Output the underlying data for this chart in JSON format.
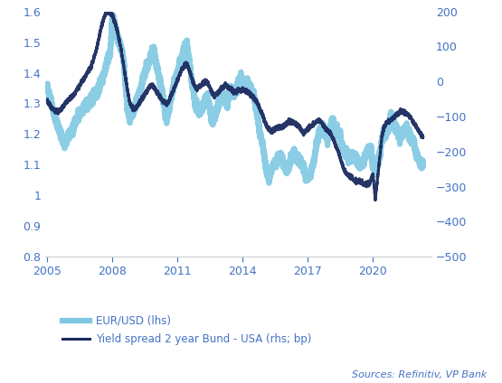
{
  "title": "",
  "ylim_left": [
    0.8,
    1.6
  ],
  "ylim_right": [
    -500,
    200
  ],
  "yticks_left": [
    0.8,
    0.9,
    1.0,
    1.1,
    1.2,
    1.3,
    1.4,
    1.5,
    1.6
  ],
  "yticks_right": [
    -500,
    -400,
    -300,
    -200,
    -100,
    0,
    100,
    200
  ],
  "xlim": [
    2004.9,
    2022.7
  ],
  "xticks": [
    2005,
    2008,
    2011,
    2014,
    2017,
    2020
  ],
  "legend_labels": [
    "EUR/USD (lhs)",
    "Yield spread 2 year Bund - USA (rhs; bp)"
  ],
  "eurusd_color": "#7ec8e3",
  "yield_color": "#1a2a5e",
  "tick_label_color": "#4472C4",
  "sources_text": "Sources: Refinitiv, VP Bank",
  "sources_color": "#4472C4",
  "background_color": "#ffffff",
  "eurusd_lw": 4.5,
  "yield_lw": 2.2,
  "eurusd_data": {
    "years": [
      2005.0,
      2005.1,
      2005.2,
      2005.3,
      2005.4,
      2005.5,
      2005.6,
      2005.7,
      2005.8,
      2005.9,
      2006.0,
      2006.1,
      2006.2,
      2006.3,
      2006.4,
      2006.5,
      2006.6,
      2006.7,
      2006.8,
      2006.9,
      2007.0,
      2007.1,
      2007.2,
      2007.3,
      2007.4,
      2007.5,
      2007.6,
      2007.7,
      2007.8,
      2007.9,
      2008.0,
      2008.1,
      2008.2,
      2008.3,
      2008.4,
      2008.5,
      2008.6,
      2008.7,
      2008.8,
      2008.9,
      2009.0,
      2009.1,
      2009.2,
      2009.3,
      2009.4,
      2009.5,
      2009.6,
      2009.7,
      2009.8,
      2009.9,
      2010.0,
      2010.1,
      2010.2,
      2010.3,
      2010.4,
      2010.5,
      2010.6,
      2010.7,
      2010.8,
      2010.9,
      2011.0,
      2011.1,
      2011.2,
      2011.3,
      2011.4,
      2011.5,
      2011.6,
      2011.7,
      2011.8,
      2011.9,
      2012.0,
      2012.1,
      2012.2,
      2012.3,
      2012.4,
      2012.5,
      2012.6,
      2012.7,
      2012.8,
      2012.9,
      2013.0,
      2013.1,
      2013.2,
      2013.3,
      2013.4,
      2013.5,
      2013.6,
      2013.7,
      2013.8,
      2013.9,
      2014.0,
      2014.1,
      2014.2,
      2014.3,
      2014.4,
      2014.5,
      2014.6,
      2014.7,
      2014.8,
      2014.9,
      2015.0,
      2015.1,
      2015.2,
      2015.3,
      2015.4,
      2015.5,
      2015.6,
      2015.7,
      2015.8,
      2015.9,
      2016.0,
      2016.1,
      2016.2,
      2016.3,
      2016.4,
      2016.5,
      2016.6,
      2016.7,
      2016.8,
      2016.9,
      2017.0,
      2017.1,
      2017.2,
      2017.3,
      2017.4,
      2017.5,
      2017.6,
      2017.7,
      2017.8,
      2017.9,
      2018.0,
      2018.1,
      2018.2,
      2018.3,
      2018.4,
      2018.5,
      2018.6,
      2018.7,
      2018.8,
      2018.9,
      2019.0,
      2019.1,
      2019.2,
      2019.3,
      2019.4,
      2019.5,
      2019.6,
      2019.7,
      2019.8,
      2019.9,
      2020.0,
      2020.1,
      2020.2,
      2020.3,
      2020.4,
      2020.5,
      2020.6,
      2020.7,
      2020.8,
      2020.9,
      2021.0,
      2021.1,
      2021.2,
      2021.3,
      2021.4,
      2021.5,
      2021.6,
      2021.7,
      2021.8,
      2021.9,
      2022.0,
      2022.1,
      2022.2,
      2022.3
    ],
    "values": [
      1.35,
      1.32,
      1.3,
      1.27,
      1.24,
      1.22,
      1.2,
      1.18,
      1.17,
      1.18,
      1.2,
      1.21,
      1.22,
      1.24,
      1.26,
      1.27,
      1.28,
      1.29,
      1.3,
      1.3,
      1.31,
      1.32,
      1.33,
      1.34,
      1.36,
      1.38,
      1.4,
      1.42,
      1.45,
      1.47,
      1.58,
      1.56,
      1.52,
      1.5,
      1.48,
      1.45,
      1.35,
      1.28,
      1.25,
      1.27,
      1.28,
      1.3,
      1.32,
      1.35,
      1.38,
      1.4,
      1.42,
      1.44,
      1.46,
      1.48,
      1.43,
      1.4,
      1.37,
      1.33,
      1.28,
      1.25,
      1.28,
      1.32,
      1.35,
      1.38,
      1.4,
      1.43,
      1.45,
      1.48,
      1.5,
      1.46,
      1.4,
      1.35,
      1.3,
      1.29,
      1.27,
      1.28,
      1.3,
      1.31,
      1.32,
      1.27,
      1.24,
      1.26,
      1.28,
      1.3,
      1.32,
      1.33,
      1.31,
      1.3,
      1.34,
      1.34,
      1.33,
      1.35,
      1.37,
      1.38,
      1.37,
      1.36,
      1.37,
      1.36,
      1.34,
      1.33,
      1.29,
      1.25,
      1.2,
      1.17,
      1.12,
      1.08,
      1.06,
      1.08,
      1.1,
      1.1,
      1.12,
      1.13,
      1.12,
      1.1,
      1.08,
      1.09,
      1.12,
      1.13,
      1.14,
      1.12,
      1.12,
      1.11,
      1.09,
      1.06,
      1.06,
      1.07,
      1.09,
      1.12,
      1.17,
      1.2,
      1.22,
      1.23,
      1.2,
      1.18,
      1.22,
      1.24,
      1.23,
      1.21,
      1.2,
      1.18,
      1.16,
      1.14,
      1.13,
      1.12,
      1.12,
      1.13,
      1.12,
      1.11,
      1.1,
      1.1,
      1.12,
      1.14,
      1.15,
      1.14,
      1.1,
      1.08,
      1.1,
      1.13,
      1.18,
      1.2,
      1.2,
      1.22,
      1.25,
      1.26,
      1.22,
      1.21,
      1.2,
      1.19,
      1.21,
      1.22,
      1.21,
      1.19,
      1.18,
      1.17,
      1.13,
      1.12,
      1.1,
      1.1
    ]
  },
  "yield_data": {
    "years": [
      2005.0,
      2005.1,
      2005.2,
      2005.3,
      2005.4,
      2005.5,
      2005.6,
      2005.7,
      2005.8,
      2005.9,
      2006.0,
      2006.1,
      2006.2,
      2006.3,
      2006.4,
      2006.5,
      2006.6,
      2006.7,
      2006.8,
      2006.9,
      2007.0,
      2007.1,
      2007.2,
      2007.3,
      2007.4,
      2007.5,
      2007.6,
      2007.7,
      2007.8,
      2007.9,
      2008.0,
      2008.1,
      2008.2,
      2008.3,
      2008.4,
      2008.5,
      2008.6,
      2008.7,
      2008.8,
      2008.9,
      2009.0,
      2009.1,
      2009.2,
      2009.3,
      2009.4,
      2009.5,
      2009.6,
      2009.7,
      2009.8,
      2009.9,
      2010.0,
      2010.1,
      2010.2,
      2010.3,
      2010.4,
      2010.5,
      2010.6,
      2010.7,
      2010.8,
      2010.9,
      2011.0,
      2011.1,
      2011.2,
      2011.3,
      2011.4,
      2011.5,
      2011.6,
      2011.7,
      2011.8,
      2011.9,
      2012.0,
      2012.1,
      2012.2,
      2012.3,
      2012.4,
      2012.5,
      2012.6,
      2012.7,
      2012.8,
      2012.9,
      2013.0,
      2013.1,
      2013.2,
      2013.3,
      2013.4,
      2013.5,
      2013.6,
      2013.7,
      2013.8,
      2013.9,
      2014.0,
      2014.1,
      2014.2,
      2014.3,
      2014.4,
      2014.5,
      2014.6,
      2014.7,
      2014.8,
      2014.9,
      2015.0,
      2015.1,
      2015.2,
      2015.3,
      2015.4,
      2015.5,
      2015.6,
      2015.7,
      2015.8,
      2015.9,
      2016.0,
      2016.1,
      2016.2,
      2016.3,
      2016.4,
      2016.5,
      2016.6,
      2016.7,
      2016.8,
      2016.9,
      2017.0,
      2017.1,
      2017.2,
      2017.3,
      2017.4,
      2017.5,
      2017.6,
      2017.7,
      2017.8,
      2017.9,
      2018.0,
      2018.1,
      2018.2,
      2018.3,
      2018.4,
      2018.5,
      2018.6,
      2018.7,
      2018.8,
      2018.9,
      2019.0,
      2019.1,
      2019.2,
      2019.3,
      2019.4,
      2019.5,
      2019.6,
      2019.7,
      2019.8,
      2019.9,
      2020.0,
      2020.1,
      2020.2,
      2020.3,
      2020.4,
      2020.5,
      2020.6,
      2020.7,
      2020.8,
      2020.9,
      2021.0,
      2021.1,
      2021.2,
      2021.3,
      2021.4,
      2021.5,
      2021.6,
      2021.7,
      2021.8,
      2021.9,
      2022.0,
      2022.1,
      2022.2,
      2022.3
    ],
    "values": [
      -55,
      -65,
      -75,
      -80,
      -85,
      -85,
      -80,
      -75,
      -65,
      -55,
      -50,
      -45,
      -40,
      -30,
      -20,
      -10,
      0,
      10,
      20,
      30,
      40,
      60,
      80,
      100,
      130,
      160,
      180,
      195,
      200,
      195,
      190,
      170,
      150,
      120,
      90,
      50,
      10,
      -30,
      -60,
      -75,
      -80,
      -75,
      -65,
      -55,
      -45,
      -35,
      -25,
      -15,
      -10,
      -15,
      -25,
      -35,
      -45,
      -55,
      -60,
      -65,
      -55,
      -40,
      -25,
      -10,
      5,
      20,
      35,
      45,
      50,
      40,
      20,
      0,
      -15,
      -20,
      -15,
      -10,
      -5,
      0,
      -5,
      -20,
      -35,
      -40,
      -35,
      -30,
      -20,
      -15,
      -10,
      -15,
      -20,
      -25,
      -30,
      -30,
      -25,
      -25,
      -25,
      -25,
      -30,
      -35,
      -40,
      -45,
      -55,
      -65,
      -80,
      -95,
      -110,
      -125,
      -135,
      -140,
      -140,
      -135,
      -130,
      -130,
      -130,
      -125,
      -120,
      -115,
      -115,
      -115,
      -120,
      -125,
      -130,
      -140,
      -145,
      -140,
      -135,
      -130,
      -125,
      -120,
      -115,
      -110,
      -115,
      -125,
      -135,
      -140,
      -145,
      -155,
      -170,
      -185,
      -200,
      -220,
      -240,
      -255,
      -265,
      -270,
      -275,
      -280,
      -285,
      -285,
      -285,
      -290,
      -295,
      -295,
      -290,
      -280,
      -265,
      -340,
      -280,
      -220,
      -160,
      -130,
      -120,
      -115,
      -110,
      -105,
      -100,
      -95,
      -90,
      -85,
      -85,
      -90,
      -95,
      -100,
      -110,
      -120,
      -130,
      -140,
      -150,
      -160
    ]
  }
}
